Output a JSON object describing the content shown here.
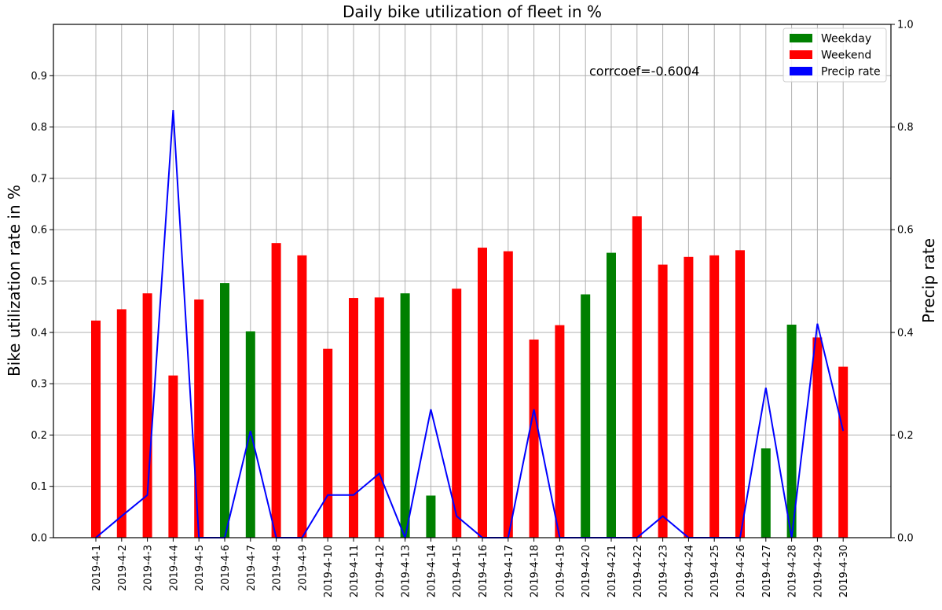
{
  "chart_data": {
    "type": "bar",
    "title": "Daily bike utilization of fleet in %",
    "ylabel": "Bike utilization rate in %",
    "y2label": "Precip rate",
    "ylim": [
      0,
      1.0
    ],
    "y2lim": [
      0,
      1.0
    ],
    "yticks": [
      "0.0",
      "0.1",
      "0.2",
      "0.3",
      "0.4",
      "0.5",
      "0.6",
      "0.7",
      "0.8",
      "0.9"
    ],
    "y2ticks": [
      "0.0",
      "0.2",
      "0.4",
      "0.6",
      "0.8",
      "1.0"
    ],
    "grid": true,
    "legend_position": "top-right",
    "annotation": "corrcoef=-0.6004",
    "categories": [
      "2019-4-1",
      "2019-4-2",
      "2019-4-3",
      "2019-4-4",
      "2019-4-5",
      "2019-4-6",
      "2019-4-7",
      "2019-4-8",
      "2019-4-9",
      "2019-4-10",
      "2019-4-11",
      "2019-4-12",
      "2019-4-13",
      "2019-4-14",
      "2019-4-15",
      "2019-4-16",
      "2019-4-17",
      "2019-4-18",
      "2019-4-19",
      "2019-4-20",
      "2019-4-21",
      "2019-4-22",
      "2019-4-23",
      "2019-4-24",
      "2019-4-25",
      "2019-4-26",
      "2019-4-27",
      "2019-4-28",
      "2019-4-29",
      "2019-4-30"
    ],
    "utilization": [
      0.423,
      0.445,
      0.476,
      0.316,
      0.464,
      0.496,
      0.402,
      0.574,
      0.55,
      0.368,
      0.467,
      0.468,
      0.476,
      0.082,
      0.485,
      0.565,
      0.558,
      0.386,
      0.414,
      0.474,
      0.555,
      0.626,
      0.532,
      0.547,
      0.55,
      0.56,
      0.174,
      0.415,
      0.39,
      0.333
    ],
    "day_type": [
      "Weekend",
      "Weekend",
      "Weekend",
      "Weekend",
      "Weekend",
      "Weekday",
      "Weekday",
      "Weekend",
      "Weekend",
      "Weekend",
      "Weekend",
      "Weekend",
      "Weekday",
      "Weekday",
      "Weekend",
      "Weekend",
      "Weekend",
      "Weekend",
      "Weekend",
      "Weekday",
      "Weekday",
      "Weekend",
      "Weekend",
      "Weekend",
      "Weekend",
      "Weekend",
      "Weekday",
      "Weekday",
      "Weekend",
      "Weekend"
    ],
    "precip_rate": [
      0.0,
      0.042,
      0.083,
      0.833,
      0.0,
      0.0,
      0.208,
      0.0,
      0.0,
      0.083,
      0.083,
      0.125,
      0.0,
      0.25,
      0.042,
      0.0,
      0.0,
      0.25,
      0.0,
      0.0,
      0.0,
      0.0,
      0.042,
      0.0,
      0.0,
      0.0,
      0.292,
      0.0,
      0.417,
      0.208
    ],
    "legend": [
      {
        "label": "Weekday",
        "color": "#008000"
      },
      {
        "label": "Weekend",
        "color": "#ff0000"
      },
      {
        "label": "Precip rate",
        "color": "#0000ff"
      }
    ],
    "colors": {
      "Weekday": "#008000",
      "Weekend": "#ff0000",
      "precip": "#0000ff"
    }
  }
}
